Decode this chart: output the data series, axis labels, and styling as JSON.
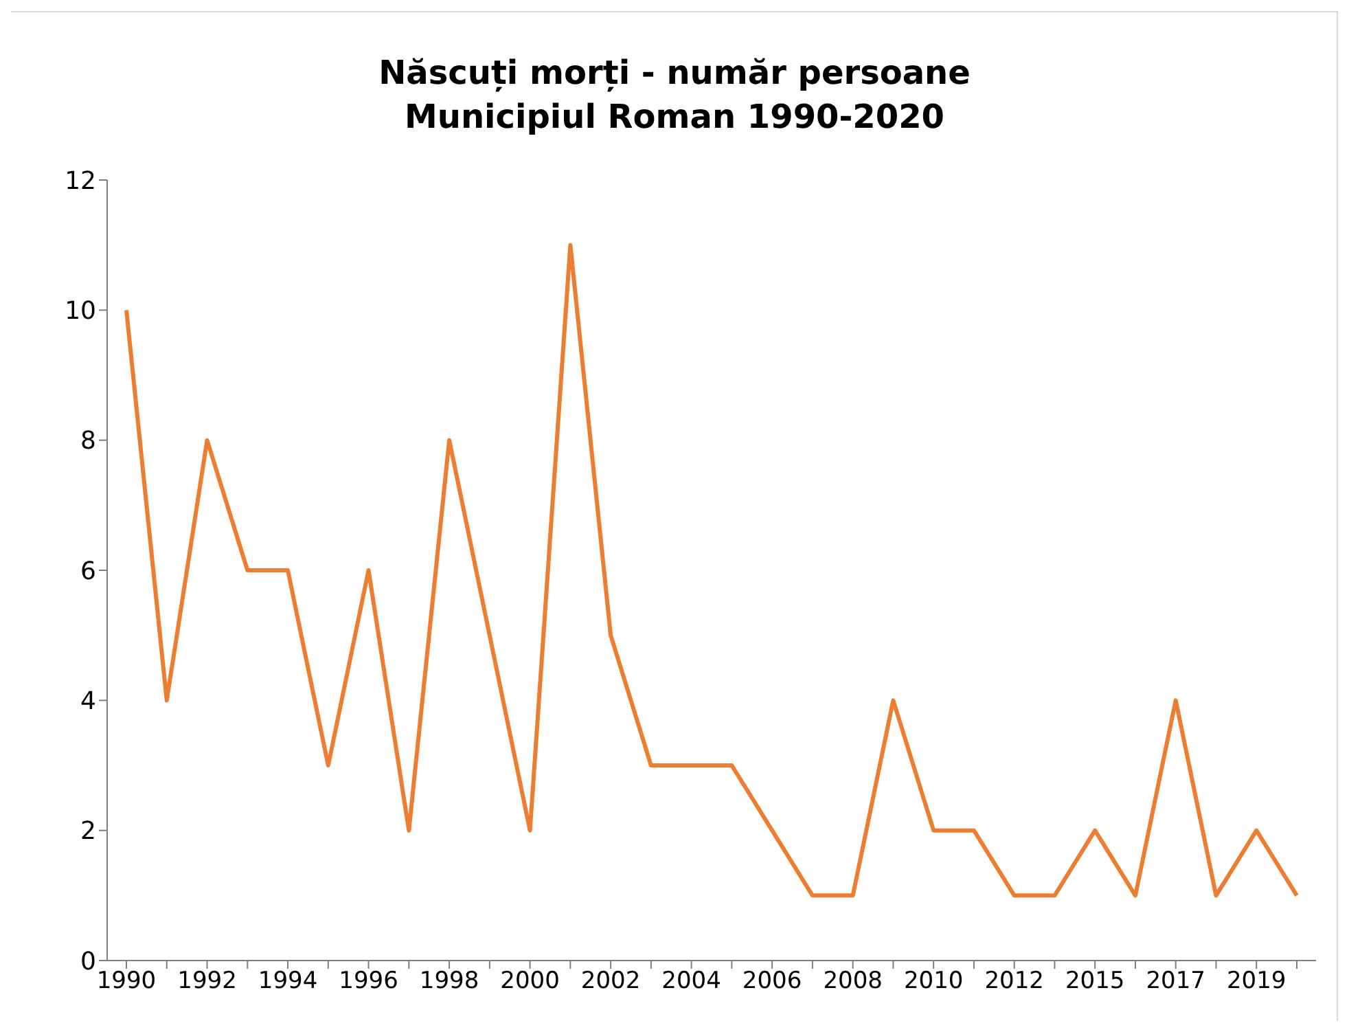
{
  "chart_data": {
    "type": "line",
    "title": "Născuți morți - număr persoane\nMunicipiul Roman 1990-2020",
    "categories": [
      "1990",
      null,
      "1992",
      null,
      "1994",
      null,
      "1996",
      null,
      "1998",
      null,
      "2000",
      null,
      "2002",
      null,
      "2004",
      null,
      "2006",
      null,
      "2008",
      null,
      "2010",
      null,
      "2012",
      null,
      "2015",
      null,
      "2017",
      null,
      "2019",
      null
    ],
    "series": [
      {
        "color": "#ed7d31",
        "values": [
          10,
          4,
          8,
          6,
          6,
          3,
          6,
          2,
          8,
          5,
          2,
          11,
          5,
          3,
          3,
          3,
          2,
          1,
          1,
          4,
          2,
          2,
          1,
          1,
          2,
          1,
          4,
          1,
          2,
          1
        ]
      }
    ],
    "ylim": [
      0,
      12
    ],
    "yticks": [
      0,
      2,
      4,
      6,
      8,
      10,
      12
    ],
    "grid": false,
    "legend": false,
    "marker": "none",
    "line_style": "solid"
  }
}
